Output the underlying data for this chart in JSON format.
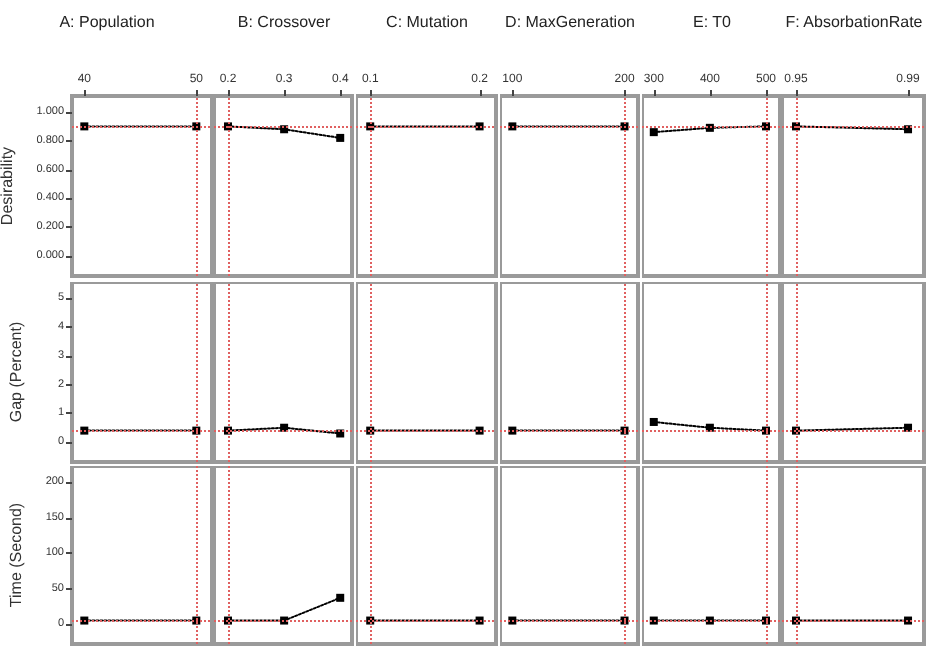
{
  "chart_data": [
    {
      "type": "line",
      "title": "A: Population",
      "ylabel": "Desirability",
      "x": [
        40,
        50
      ],
      "values": [
        0.9,
        0.9
      ],
      "color": "#000000",
      "marker": "square",
      "line_style": "dotted",
      "xlim": [
        38.9,
        51.4
      ],
      "xticks": [
        40,
        50
      ],
      "ylim": [
        -0.139,
        1.111
      ],
      "yticks": [
        {
          "value": 0,
          "label": "0.000"
        },
        {
          "value": 0.2,
          "label": "0.200"
        },
        {
          "value": 0.4,
          "label": "0.400"
        },
        {
          "value": 0.6,
          "label": "0.600"
        },
        {
          "value": 0.8,
          "label": "0.800"
        },
        {
          "value": 1,
          "label": "1.000"
        }
      ],
      "ref_lines": [
        {
          "axis": "x",
          "value": 50,
          "color": "#e06060",
          "line_style": "dotted"
        },
        {
          "axis": "y",
          "value": 0.9,
          "color": "#e06060",
          "line_style": "dotted"
        }
      ],
      "grid": false
    },
    {
      "type": "line",
      "title": "B: Crossover",
      "x": [
        0.2,
        0.3,
        0.4
      ],
      "values": [
        0.9,
        0.88,
        0.82
      ],
      "color": "#000000",
      "marker": "square",
      "line_style": "dotted",
      "xlim": [
        0.175,
        0.421
      ],
      "xticks": [
        0.2,
        0.3,
        0.4
      ],
      "ylim": [
        -0.139,
        1.111
      ],
      "tick_labels": "x",
      "ref_lines": [
        {
          "axis": "x",
          "value": 0.2,
          "color": "#e06060",
          "line_style": "dotted"
        },
        {
          "axis": "y",
          "value": 0.9,
          "color": "#e06060",
          "line_style": "dotted"
        }
      ],
      "grid": false
    },
    {
      "type": "line",
      "title": "C: Mutation",
      "x": [
        0.1,
        0.2
      ],
      "values": [
        0.9,
        0.9
      ],
      "color": "#000000",
      "marker": "square",
      "line_style": "dotted",
      "xlim": [
        0.087,
        0.215
      ],
      "xticks": [
        0.1,
        0.2
      ],
      "ylim": [
        -0.139,
        1.111
      ],
      "tick_labels": "x",
      "ref_lines": [
        {
          "axis": "x",
          "value": 0.1,
          "color": "#e06060",
          "line_style": "dotted"
        },
        {
          "axis": "y",
          "value": 0.9,
          "color": "#e06060",
          "line_style": "dotted"
        }
      ],
      "grid": false
    },
    {
      "type": "line",
      "title": "D: MaxGeneration",
      "x": [
        100,
        200
      ],
      "values": [
        0.9,
        0.9
      ],
      "color": "#000000",
      "marker": "square",
      "line_style": "dotted",
      "xlim": [
        89,
        212
      ],
      "xticks": [
        100,
        200
      ],
      "ylim": [
        -0.139,
        1.111
      ],
      "tick_labels": "x",
      "ref_lines": [
        {
          "axis": "x",
          "value": 200,
          "color": "#e06060",
          "line_style": "dotted"
        },
        {
          "axis": "y",
          "value": 0.9,
          "color": "#e06060",
          "line_style": "dotted"
        }
      ],
      "grid": false
    },
    {
      "type": "line",
      "title": "E: T0",
      "x": [
        300,
        400,
        500
      ],
      "values": [
        0.86,
        0.89,
        0.9
      ],
      "color": "#000000",
      "marker": "square",
      "line_style": "dotted",
      "xlim": [
        279,
        525
      ],
      "xticks": [
        300,
        400,
        500
      ],
      "ylim": [
        -0.139,
        1.111
      ],
      "tick_labels": "x",
      "ref_lines": [
        {
          "axis": "x",
          "value": 500,
          "color": "#e06060",
          "line_style": "dotted"
        },
        {
          "axis": "y",
          "value": 0.9,
          "color": "#e06060",
          "line_style": "dotted"
        }
      ],
      "grid": false
    },
    {
      "type": "line",
      "title": "F: AbsorbationRate",
      "x": [
        0.95,
        0.99
      ],
      "values": [
        0.9,
        0.88
      ],
      "color": "#000000",
      "marker": "square",
      "line_style": "dotted",
      "xlim": [
        0.945,
        0.9957
      ],
      "xticks": [
        0.95,
        0.99
      ],
      "ylim": [
        -0.139,
        1.111
      ],
      "tick_labels": "x",
      "ref_lines": [
        {
          "axis": "x",
          "value": 0.95,
          "color": "#e06060",
          "line_style": "dotted"
        },
        {
          "axis": "y",
          "value": 0.9,
          "color": "#e06060",
          "line_style": "dotted"
        }
      ],
      "grid": false
    },
    {
      "type": "line",
      "ylabel": "Gap (Percent)",
      "x": [
        40,
        50
      ],
      "values": [
        0.4,
        0.4
      ],
      "color": "#000000",
      "marker": "square",
      "line_style": "dotted",
      "xlim": [
        38.9,
        51.4
      ],
      "ylim": [
        -0.69,
        5.56
      ],
      "yticks": [
        0,
        1,
        2,
        3,
        4,
        5
      ],
      "tick_labels": "y",
      "ref_lines": [
        {
          "axis": "x",
          "value": 50,
          "color": "#e06060",
          "line_style": "dotted"
        },
        {
          "axis": "y",
          "value": 0.4,
          "color": "#e06060",
          "line_style": "dotted"
        }
      ],
      "grid": false
    },
    {
      "type": "line",
      "x": [
        0.2,
        0.3,
        0.4
      ],
      "values": [
        0.4,
        0.5,
        0.3
      ],
      "color": "#000000",
      "marker": "square",
      "line_style": "dotted",
      "xlim": [
        0.175,
        0.421
      ],
      "ylim": [
        -0.69,
        5.56
      ],
      "tick_labels": false,
      "ref_lines": [
        {
          "axis": "x",
          "value": 0.2,
          "color": "#e06060",
          "line_style": "dotted"
        },
        {
          "axis": "y",
          "value": 0.4,
          "color": "#e06060",
          "line_style": "dotted"
        }
      ],
      "grid": false
    },
    {
      "type": "line",
      "x": [
        0.1,
        0.2
      ],
      "values": [
        0.4,
        0.4
      ],
      "color": "#000000",
      "marker": "square",
      "line_style": "dotted",
      "xlim": [
        0.087,
        0.215
      ],
      "ylim": [
        -0.69,
        5.56
      ],
      "tick_labels": false,
      "ref_lines": [
        {
          "axis": "x",
          "value": 0.1,
          "color": "#e06060",
          "line_style": "dotted"
        },
        {
          "axis": "y",
          "value": 0.4,
          "color": "#e06060",
          "line_style": "dotted"
        }
      ],
      "grid": false
    },
    {
      "type": "line",
      "x": [
        100,
        200
      ],
      "values": [
        0.4,
        0.4
      ],
      "color": "#000000",
      "marker": "square",
      "line_style": "dotted",
      "xlim": [
        89,
        212
      ],
      "ylim": [
        -0.69,
        5.56
      ],
      "tick_labels": false,
      "ref_lines": [
        {
          "axis": "x",
          "value": 200,
          "color": "#e06060",
          "line_style": "dotted"
        },
        {
          "axis": "y",
          "value": 0.4,
          "color": "#e06060",
          "line_style": "dotted"
        }
      ],
      "grid": false
    },
    {
      "type": "line",
      "x": [
        300,
        400,
        500
      ],
      "values": [
        0.7,
        0.5,
        0.4
      ],
      "color": "#000000",
      "marker": "square",
      "line_style": "dotted",
      "xlim": [
        279,
        525
      ],
      "ylim": [
        -0.69,
        5.56
      ],
      "tick_labels": false,
      "ref_lines": [
        {
          "axis": "x",
          "value": 500,
          "color": "#e06060",
          "line_style": "dotted"
        },
        {
          "axis": "y",
          "value": 0.4,
          "color": "#e06060",
          "line_style": "dotted"
        }
      ],
      "grid": false
    },
    {
      "type": "line",
      "x": [
        0.95,
        0.99
      ],
      "values": [
        0.4,
        0.5
      ],
      "color": "#000000",
      "marker": "square",
      "line_style": "dotted",
      "xlim": [
        0.945,
        0.9957
      ],
      "ylim": [
        -0.69,
        5.56
      ],
      "tick_labels": false,
      "ref_lines": [
        {
          "axis": "x",
          "value": 0.95,
          "color": "#e06060",
          "line_style": "dotted"
        },
        {
          "axis": "y",
          "value": 0.4,
          "color": "#e06060",
          "line_style": "dotted"
        }
      ],
      "grid": false
    },
    {
      "type": "line",
      "ylabel": "Time (Second)",
      "x": [
        40,
        50
      ],
      "values": [
        5,
        5
      ],
      "color": "#000000",
      "marker": "square",
      "line_style": "dotted",
      "xlim": [
        38.9,
        51.4
      ],
      "ylim": [
        -28,
        222.5
      ],
      "yticks": [
        0,
        50,
        100,
        150,
        200
      ],
      "tick_labels": "y",
      "ref_lines": [
        {
          "axis": "x",
          "value": 50,
          "color": "#e06060",
          "line_style": "dotted"
        },
        {
          "axis": "y",
          "value": 5,
          "color": "#e06060",
          "line_style": "dotted"
        }
      ],
      "grid": false
    },
    {
      "type": "line",
      "x": [
        0.2,
        0.3,
        0.4
      ],
      "values": [
        5,
        5,
        37
      ],
      "color": "#000000",
      "marker": "square",
      "line_style": "dotted",
      "xlim": [
        0.175,
        0.421
      ],
      "ylim": [
        -28,
        222.5
      ],
      "tick_labels": false,
      "ref_lines": [
        {
          "axis": "x",
          "value": 0.2,
          "color": "#e06060",
          "line_style": "dotted"
        },
        {
          "axis": "y",
          "value": 5,
          "color": "#e06060",
          "line_style": "dotted"
        }
      ],
      "grid": false
    },
    {
      "type": "line",
      "x": [
        0.1,
        0.2
      ],
      "values": [
        5,
        5
      ],
      "color": "#000000",
      "marker": "square",
      "line_style": "dotted",
      "xlim": [
        0.087,
        0.215
      ],
      "ylim": [
        -28,
        222.5
      ],
      "tick_labels": false,
      "ref_lines": [
        {
          "axis": "x",
          "value": 0.1,
          "color": "#e06060",
          "line_style": "dotted"
        },
        {
          "axis": "y",
          "value": 5,
          "color": "#e06060",
          "line_style": "dotted"
        }
      ],
      "grid": false
    },
    {
      "type": "line",
      "x": [
        100,
        200
      ],
      "values": [
        5,
        5
      ],
      "color": "#000000",
      "marker": "square",
      "line_style": "dotted",
      "xlim": [
        89,
        212
      ],
      "ylim": [
        -28,
        222.5
      ],
      "tick_labels": false,
      "ref_lines": [
        {
          "axis": "x",
          "value": 200,
          "color": "#e06060",
          "line_style": "dotted"
        },
        {
          "axis": "y",
          "value": 5,
          "color": "#e06060",
          "line_style": "dotted"
        }
      ],
      "grid": false
    },
    {
      "type": "line",
      "x": [
        300,
        400,
        500
      ],
      "values": [
        5,
        5,
        5
      ],
      "color": "#000000",
      "marker": "square",
      "line_style": "dotted",
      "xlim": [
        279,
        525
      ],
      "ylim": [
        -28,
        222.5
      ],
      "tick_labels": false,
      "ref_lines": [
        {
          "axis": "x",
          "value": 500,
          "color": "#e06060",
          "line_style": "dotted"
        },
        {
          "axis": "y",
          "value": 5,
          "color": "#e06060",
          "line_style": "dotted"
        }
      ],
      "grid": false
    },
    {
      "type": "line",
      "x": [
        0.95,
        0.99
      ],
      "values": [
        5,
        5
      ],
      "color": "#000000",
      "marker": "square",
      "line_style": "dotted",
      "xlim": [
        0.945,
        0.9957
      ],
      "ylim": [
        -28,
        222.5
      ],
      "tick_labels": false,
      "ref_lines": [
        {
          "axis": "x",
          "value": 0.95,
          "color": "#e06060",
          "line_style": "dotted"
        },
        {
          "axis": "y",
          "value": 5,
          "color": "#e06060",
          "line_style": "dotted"
        }
      ],
      "grid": false
    }
  ]
}
